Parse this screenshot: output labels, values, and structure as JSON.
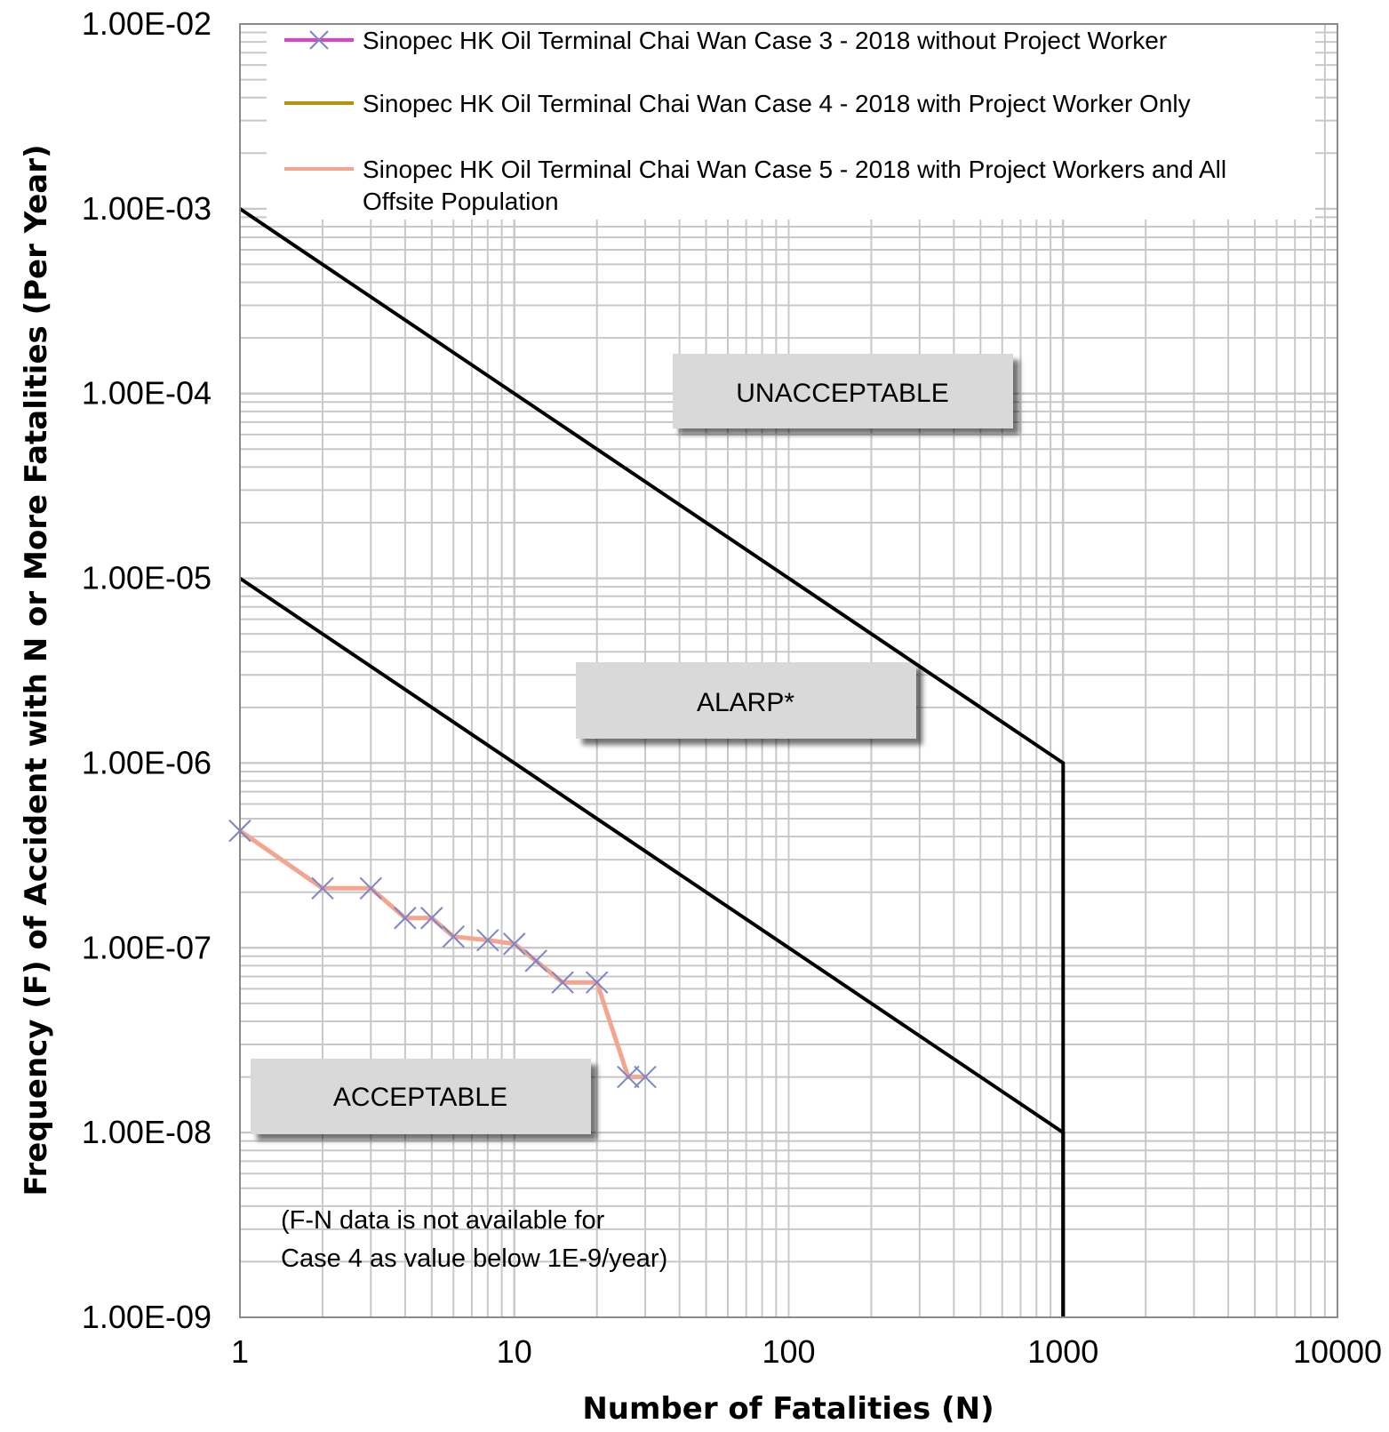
{
  "chart_data": {
    "type": "line",
    "x_scale": "log",
    "y_scale": "log",
    "xlim": [
      1,
      10000
    ],
    "ylim": [
      1e-09,
      0.01
    ],
    "x_ticks": [
      "1",
      "10",
      "100",
      "1000",
      "10000"
    ],
    "y_ticks": [
      "1.00E-09",
      "1.00E-08",
      "1.00E-07",
      "1.00E-06",
      "1.00E-05",
      "1.00E-04",
      "1.00E-03",
      "1.00E-02"
    ],
    "xlabel": "Number of Fatalities (N)",
    "ylabel": "Frequency (F) of Accident with N or More Fatalities (Per Year)",
    "grid": true,
    "legend_position": "top",
    "series": [
      {
        "name": "Sinopec HK Oil Terminal Chai Wan Case 3 - 2018 without Project Worker",
        "color": "#e040d0",
        "marker": "x",
        "marker_color": "#7a86c8",
        "x": [
          1,
          2,
          3,
          4,
          5,
          6,
          8,
          10,
          12,
          15,
          20,
          26,
          30
        ],
        "y": [
          4.3e-07,
          2.1e-07,
          2.1e-07,
          1.45e-07,
          1.45e-07,
          1.15e-07,
          1.1e-07,
          1.05e-07,
          8.5e-08,
          6.5e-08,
          6.5e-08,
          2e-08,
          2e-08
        ]
      },
      {
        "name": "Sinopec HK Oil Terminal Chai Wan Case 4 - 2018 with Project Worker Only",
        "color": "#b8900a",
        "x": [],
        "y": []
      },
      {
        "name": "Sinopec HK Oil Terminal Chai Wan Case 5 - 2018 with Project Workers and All Offsite Population",
        "color": "#f4a590",
        "x": [
          1,
          2,
          3,
          4,
          5,
          6,
          8,
          10,
          12,
          15,
          20,
          26,
          30
        ],
        "y": [
          4.3e-07,
          2.1e-07,
          2.1e-07,
          1.45e-07,
          1.45e-07,
          1.15e-07,
          1.1e-07,
          1.05e-07,
          8.5e-08,
          6.5e-08,
          6.5e-08,
          2e-08,
          2e-08
        ]
      }
    ],
    "criteria_lines": [
      {
        "x": [
          1,
          1000,
          1000
        ],
        "y": [
          0.001,
          1e-06,
          1e-09
        ],
        "color": "#000000"
      },
      {
        "x": [
          1,
          1000,
          1000
        ],
        "y": [
          1e-05,
          1e-08,
          1e-09
        ],
        "color": "#000000"
      }
    ],
    "zone_labels": {
      "unacceptable": "UNACCEPTABLE",
      "alarp": "ALARP*",
      "acceptable": "ACCEPTABLE"
    },
    "note_lines": [
      "(F-N data is not available for",
      "Case 4 as value below 1E-9/year)"
    ]
  }
}
